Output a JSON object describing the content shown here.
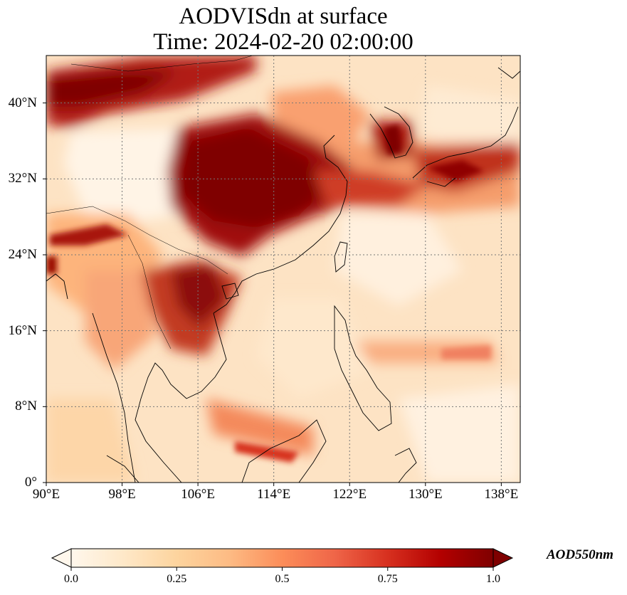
{
  "title_line1": "AODVISdn at surface",
  "title_line2": "Time: 2024-02-20 02:00:00",
  "map": {
    "lon_range": [
      90,
      140
    ],
    "lat_range": [
      0,
      45
    ],
    "lat_ticks": [
      {
        "value": 40,
        "label": "40°N"
      },
      {
        "value": 32,
        "label": "32°N"
      },
      {
        "value": 24,
        "label": "24°N"
      },
      {
        "value": 16,
        "label": "16°N"
      },
      {
        "value": 8,
        "label": "8°N"
      },
      {
        "value": 0,
        "label": "0°"
      }
    ],
    "lon_ticks": [
      {
        "value": 90,
        "label": "90°E"
      },
      {
        "value": 98,
        "label": "98°E"
      },
      {
        "value": 106,
        "label": "106°E"
      },
      {
        "value": 114,
        "label": "114°E"
      },
      {
        "value": 122,
        "label": "122°E"
      },
      {
        "value": 130,
        "label": "130°E"
      },
      {
        "value": 138,
        "label": "138°E"
      }
    ],
    "gridlines": true,
    "colormap": "OrRd"
  },
  "colorbar": {
    "label": "AOD550nm",
    "min": 0.0,
    "max": 1.0,
    "ticks": [
      {
        "value": 0.0,
        "label": "0.0"
      },
      {
        "value": 0.25,
        "label": "0.25"
      },
      {
        "value": 0.5,
        "label": "0.5"
      },
      {
        "value": 0.75,
        "label": "0.75"
      },
      {
        "value": 1.0,
        "label": "1.0"
      }
    ],
    "extend": "both",
    "colors": [
      "#fff7ec",
      "#fee8c8",
      "#fdd49e",
      "#fdbb84",
      "#fc8d59",
      "#ef6548",
      "#d7301f",
      "#b30000",
      "#7f0000"
    ]
  }
}
